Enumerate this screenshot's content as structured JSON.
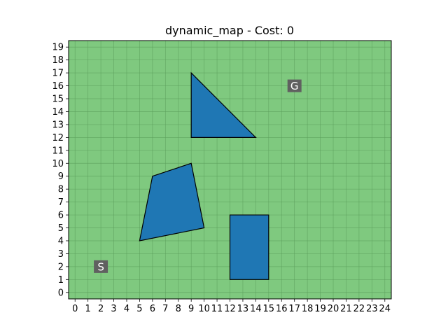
{
  "chart_data": {
    "type": "map",
    "title": "dynamic_map - Cost: 0",
    "xlabel": "",
    "ylabel": "",
    "xlim": [
      -0.5,
      24.5
    ],
    "ylim": [
      -0.5,
      19.5
    ],
    "x_ticks": [
      "0",
      "1",
      "2",
      "3",
      "4",
      "5",
      "6",
      "7",
      "8",
      "9",
      "10",
      "11",
      "12",
      "13",
      "14",
      "15",
      "16",
      "17",
      "18",
      "19",
      "20",
      "21",
      "22",
      "23",
      "24"
    ],
    "y_ticks": [
      "0",
      "1",
      "2",
      "3",
      "4",
      "5",
      "6",
      "7",
      "8",
      "9",
      "10",
      "11",
      "12",
      "13",
      "14",
      "15",
      "16",
      "17",
      "18",
      "19"
    ],
    "grid": true,
    "colors": {
      "free_space": "#7fc97f",
      "grid_line": "#5a9c5a",
      "obstacle_fill": "#1f77b4",
      "obstacle_edge": "#000000",
      "marker_bg": "#606060",
      "marker_text": "#ffffff"
    },
    "obstacles": [
      {
        "shape": "triangle",
        "points": [
          [
            9,
            17
          ],
          [
            9,
            12
          ],
          [
            14,
            12
          ]
        ]
      },
      {
        "shape": "quadrilateral",
        "points": [
          [
            6,
            9
          ],
          [
            9,
            10
          ],
          [
            10,
            5
          ],
          [
            5,
            4
          ]
        ]
      },
      {
        "shape": "rectangle",
        "points": [
          [
            12,
            1
          ],
          [
            15,
            1
          ],
          [
            15,
            6
          ],
          [
            12,
            6
          ]
        ]
      }
    ],
    "start": {
      "label": "S",
      "x": 2,
      "y": 2
    },
    "goal": {
      "label": "G",
      "x": 17,
      "y": 16
    }
  }
}
